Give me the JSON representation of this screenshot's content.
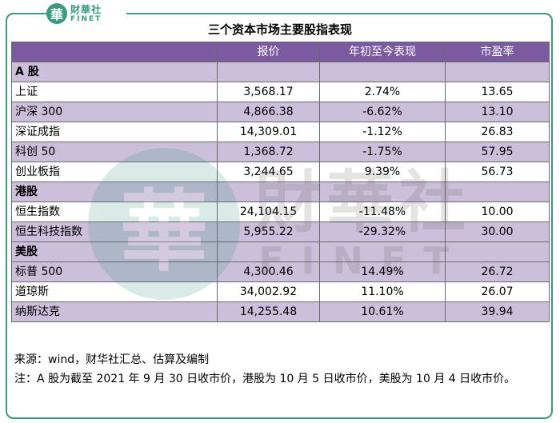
{
  "logo": {
    "glyph": "華",
    "cn": "財華社",
    "en": "FINET"
  },
  "watermark": {
    "glyph": "華",
    "cn": "財華社",
    "en": "FINET"
  },
  "title": "三个资本市场主要股指表现",
  "table": {
    "columns": [
      "",
      "报价",
      "年初至今表现",
      "市盈率"
    ],
    "sections": [
      {
        "name": "A 股",
        "rows": [
          {
            "name": "上证",
            "price": "3,568.17",
            "ytd": "2.74%",
            "pe": "13.65"
          },
          {
            "name": "沪深 300",
            "price": "4,866.38",
            "ytd": "-6.62%",
            "pe": "13.10"
          },
          {
            "name": "深证成指",
            "price": "14,309.01",
            "ytd": "-1.12%",
            "pe": "26.83"
          },
          {
            "name": "科创 50",
            "price": "1,368.72",
            "ytd": "-1.75%",
            "pe": "57.95"
          },
          {
            "name": "创业板指",
            "price": "3,244.65",
            "ytd": "9.39%",
            "pe": "56.73"
          }
        ]
      },
      {
        "name": "港股",
        "rows": [
          {
            "name": "恒生指数",
            "price": "24,104.15",
            "ytd": "-11.48%",
            "pe": "10.00"
          },
          {
            "name": "恒生科技指数",
            "price": "5,955.22",
            "ytd": "-29.32%",
            "pe": "30.00"
          }
        ]
      },
      {
        "name": "美股",
        "rows": [
          {
            "name": "标普 500",
            "price": "4,300.46",
            "ytd": "14.49%",
            "pe": "26.72"
          },
          {
            "name": "道琼斯",
            "price": "34,002.92",
            "ytd": "11.10%",
            "pe": "26.07"
          },
          {
            "name": "纳斯达克",
            "price": "14,255.48",
            "ytd": "10.61%",
            "pe": "39.94"
          }
        ]
      }
    ]
  },
  "notes": {
    "source": "来源：wind，财华社汇总、估算及编制",
    "remark": "注：A 股为截至 2021 年 9 月 30 日收市价，港股为 10 月 5 日收市价，美股为 10 月 4 日收市价。"
  }
}
